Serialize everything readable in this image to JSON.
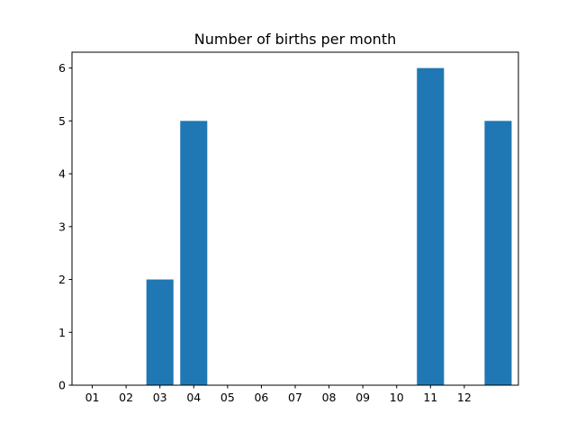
{
  "chart_data": {
    "type": "bar",
    "title": "Number of births per month",
    "xlabel": "",
    "ylabel": "",
    "x_tick_labels": [
      "01",
      "02",
      "03",
      "04",
      "05",
      "06",
      "07",
      "08",
      "09",
      "10",
      "11",
      "12"
    ],
    "bars": [
      {
        "x": 3,
        "value": 2
      },
      {
        "x": 4,
        "value": 5
      },
      {
        "x": 11,
        "value": 6
      },
      {
        "x": 13,
        "value": 5
      }
    ],
    "xlim": [
      0.4,
      13.6
    ],
    "ylim": [
      0,
      6.3
    ],
    "y_ticks": [
      0,
      1,
      2,
      3,
      4,
      5,
      6
    ],
    "bar_width": 0.8,
    "bar_color": "#1f77b4",
    "grid": false,
    "legend": "none"
  }
}
